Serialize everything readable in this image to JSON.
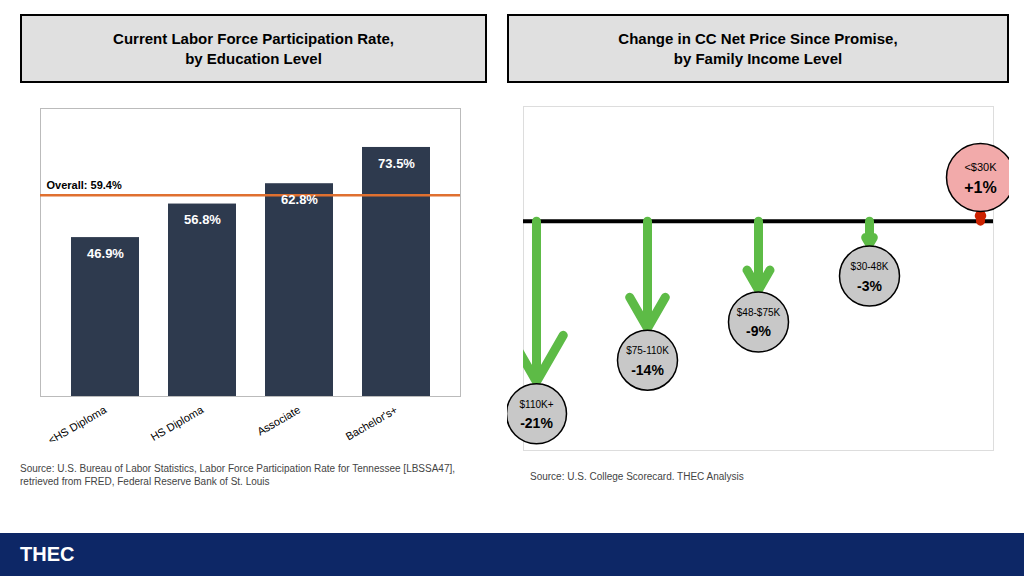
{
  "chart_data": [
    {
      "type": "bar",
      "title": "Current Labor Force Participation Rate,\nby Education Level",
      "categories": [
        "<HS Diploma",
        "HS Diploma",
        "Associate",
        "Bachelor's+"
      ],
      "values": [
        46.9,
        56.8,
        62.8,
        73.5
      ],
      "value_labels": [
        "46.9%",
        "56.8%",
        "62.8%",
        "73.5%"
      ],
      "data_labels": true,
      "color": "#2E3A4E",
      "ylim": [
        0,
        85
      ],
      "tick_labels": "x",
      "grid": false,
      "reference_line": {
        "value": 59.4,
        "label": "Overall: 59.4%",
        "color": "#E07030"
      },
      "caption": "Source: U.S. Bureau of Labor Statistics, Labor Force Participation Rate for Tennessee [LBSSA47],\nretrieved from FRED, Federal Reserve Bank of St. Louis"
    },
    {
      "type": "arrow",
      "title": "Change in CC Net Price Since Promise,\nby Family Income Level",
      "categories": [
        "$110K+",
        "$75-110K",
        "$48-$75K",
        "$30-48K",
        "<$30K"
      ],
      "values": [
        -21,
        -14,
        -9,
        -3,
        1
      ],
      "value_labels": [
        "-21%",
        "-14%",
        "-9%",
        "-3%",
        "+1%"
      ],
      "data_labels": true,
      "colors": [
        "#5DBB46",
        "#5DBB46",
        "#5DBB46",
        "#5DBB46",
        "#CC2200"
      ],
      "ylim": [
        -30,
        15
      ],
      "tick_labels": false,
      "grid": false,
      "caption": "Source: U.S. College Scorecard. THEC Analysis"
    }
  ],
  "footer": {
    "text": "THEC",
    "color": "#0D2766"
  }
}
